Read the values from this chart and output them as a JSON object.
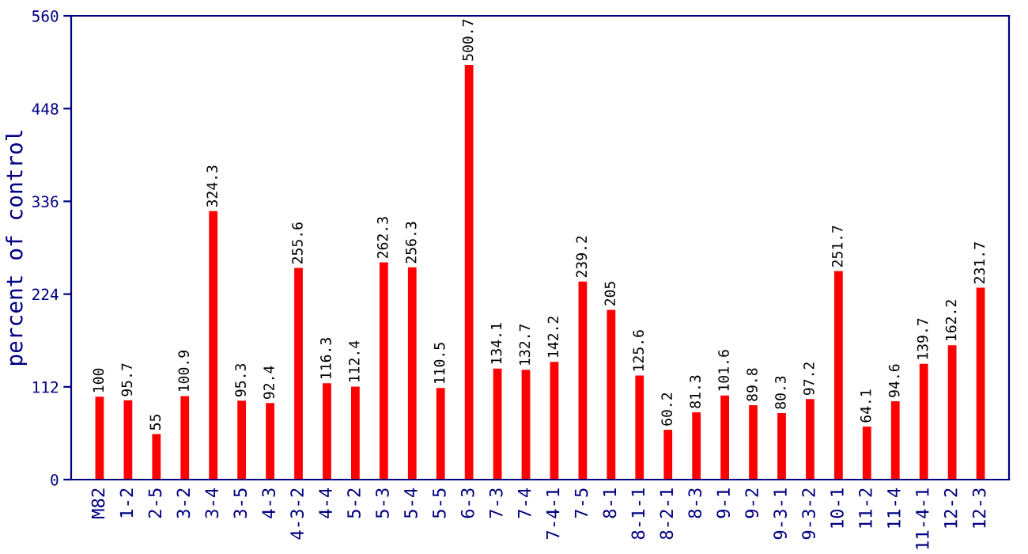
{
  "chart_data": {
    "type": "bar",
    "ylabel": "percent of control",
    "categories": [
      "M82",
      "1-2",
      "2-5",
      "3-2",
      "3-4",
      "3-5",
      "4-3",
      "4-3-2",
      "4-4",
      "5-2",
      "5-3",
      "5-4",
      "5-5",
      "6-3",
      "7-3",
      "7-4",
      "7-4-1",
      "7-5",
      "8-1",
      "8-1-1",
      "8-2-1",
      "8-3",
      "9-1",
      "9-2",
      "9-3-1",
      "9-3-2",
      "10-1",
      "11-2",
      "11-4",
      "11-4-1",
      "12-2",
      "12-3"
    ],
    "values": [
      100,
      95.7,
      55,
      100.9,
      324.3,
      95.3,
      92.4,
      255.6,
      116.3,
      112.4,
      262.3,
      256.3,
      110.5,
      500.7,
      134.1,
      132.7,
      142.2,
      239.2,
      205,
      125.6,
      60.2,
      81.3,
      101.6,
      89.8,
      80.3,
      97.2,
      251.7,
      64.1,
      94.6,
      139.7,
      162.2,
      231.7
    ],
    "color": "#ff0000",
    "data_labels": true,
    "grid": false,
    "legend": false,
    "ylim": [
      0,
      560
    ],
    "yticks": [
      0,
      112,
      224,
      336,
      448,
      560
    ]
  }
}
